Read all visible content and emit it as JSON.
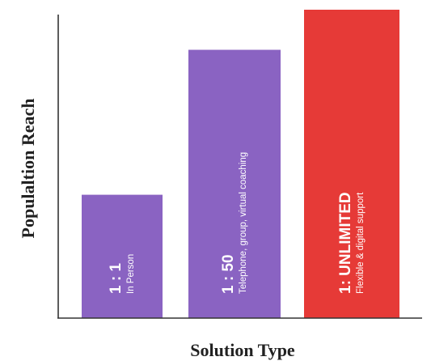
{
  "chart_data": {
    "type": "bar",
    "xlabel": "Solution Type",
    "ylabel": "Populaltion Reach",
    "ylim": [
      0,
      100
    ],
    "grid": false,
    "categories": [
      "1 : 1",
      "1 : 50",
      "1: UNLIMITED"
    ],
    "descriptions": [
      "In Person",
      "Telephone, group, virtual coaching",
      "Flexible & digital support"
    ],
    "values": [
      40,
      87,
      100
    ],
    "colors": [
      "#8a63c2",
      "#8a63c2",
      "#e63a37"
    ]
  }
}
